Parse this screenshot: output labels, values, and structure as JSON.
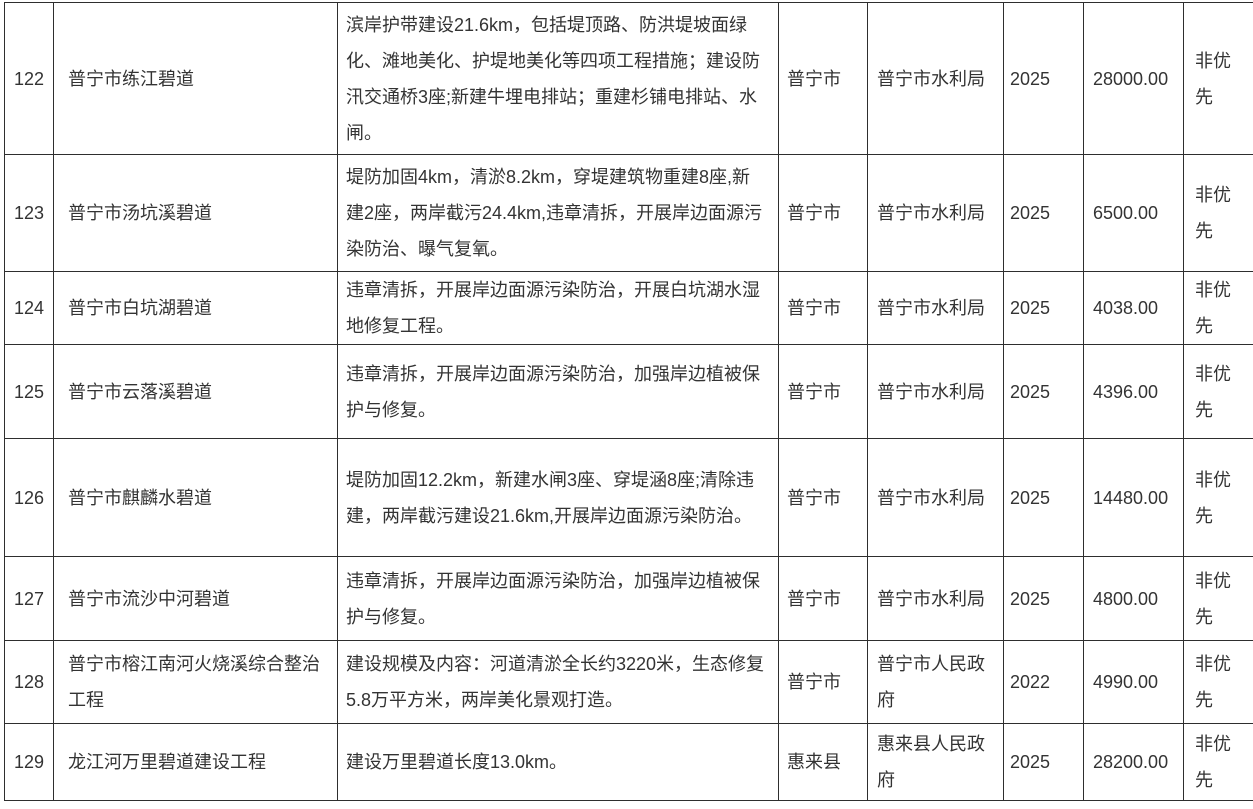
{
  "colors": {
    "text": "#333333",
    "border": "#2e2e2e",
    "background": "#ffffff"
  },
  "table": {
    "rows": [
      {
        "id": "122",
        "name": "普宁市练江碧道",
        "description": "滨岸护带建设21.6km，包括堤顶路、防洪堤坡面绿化、滩地美化、护堤地美化等四项工程措施；建设防汛交通桥3座;新建牛埋电排站；重建杉铺电排站、水闸。",
        "city": "普宁市",
        "agency": "普宁市水利局",
        "year": "2025",
        "amount": "28000.00",
        "priority": "非优先"
      },
      {
        "id": "123",
        "name": "普宁市汤坑溪碧道",
        "description": "堤防加固4km，清淤8.2km，穿堤建筑物重建8座,新建2座，两岸截污24.4km,违章清拆，开展岸边面源污染防治、曝气复氧。",
        "city": "普宁市",
        "agency": "普宁市水利局",
        "year": "2025",
        "amount": "6500.00",
        "priority": "非优先"
      },
      {
        "id": "124",
        "name": "普宁市白坑湖碧道",
        "description": "违章清拆，开展岸边面源污染防治，开展白坑湖水湿地修复工程。",
        "city": "普宁市",
        "agency": "普宁市水利局",
        "year": "2025",
        "amount": "4038.00",
        "priority": "非优先"
      },
      {
        "id": "125",
        "name": "普宁市云落溪碧道",
        "description": "违章清拆，开展岸边面源污染防治，加强岸边植被保护与修复。",
        "city": "普宁市",
        "agency": "普宁市水利局",
        "year": "2025",
        "amount": "4396.00",
        "priority": "非优先"
      },
      {
        "id": "126",
        "name": "普宁市麒麟水碧道",
        "description": "堤防加固12.2km，新建水闸3座、穿堤涵8座;清除违建，两岸截污建设21.6km,开展岸边面源污染防治。",
        "city": "普宁市",
        "agency": "普宁市水利局",
        "year": "2025",
        "amount": "14480.00",
        "priority": "非优先"
      },
      {
        "id": "127",
        "name": "普宁市流沙中河碧道",
        "description": "违章清拆，开展岸边面源污染防治，加强岸边植被保护与修复。",
        "city": "普宁市",
        "agency": "普宁市水利局",
        "year": "2025",
        "amount": "4800.00",
        "priority": "非优先"
      },
      {
        "id": "128",
        "name": "普宁市榕江南河火烧溪综合整治工程",
        "description": "建设规模及内容：河道清淤全长约3220米，生态修复5.8万平方米，两岸美化景观打造。",
        "city": "普宁市",
        "agency": "普宁市人民政府",
        "year": "2022",
        "amount": "4990.00",
        "priority": "非优先"
      },
      {
        "id": "129",
        "name": "龙江河万里碧道建设工程",
        "description": "建设万里碧道长度13.0km。",
        "city": "惠来县",
        "agency": "惠来县人民政府",
        "year": "2025",
        "amount": "28200.00",
        "priority": "非优先"
      }
    ]
  }
}
